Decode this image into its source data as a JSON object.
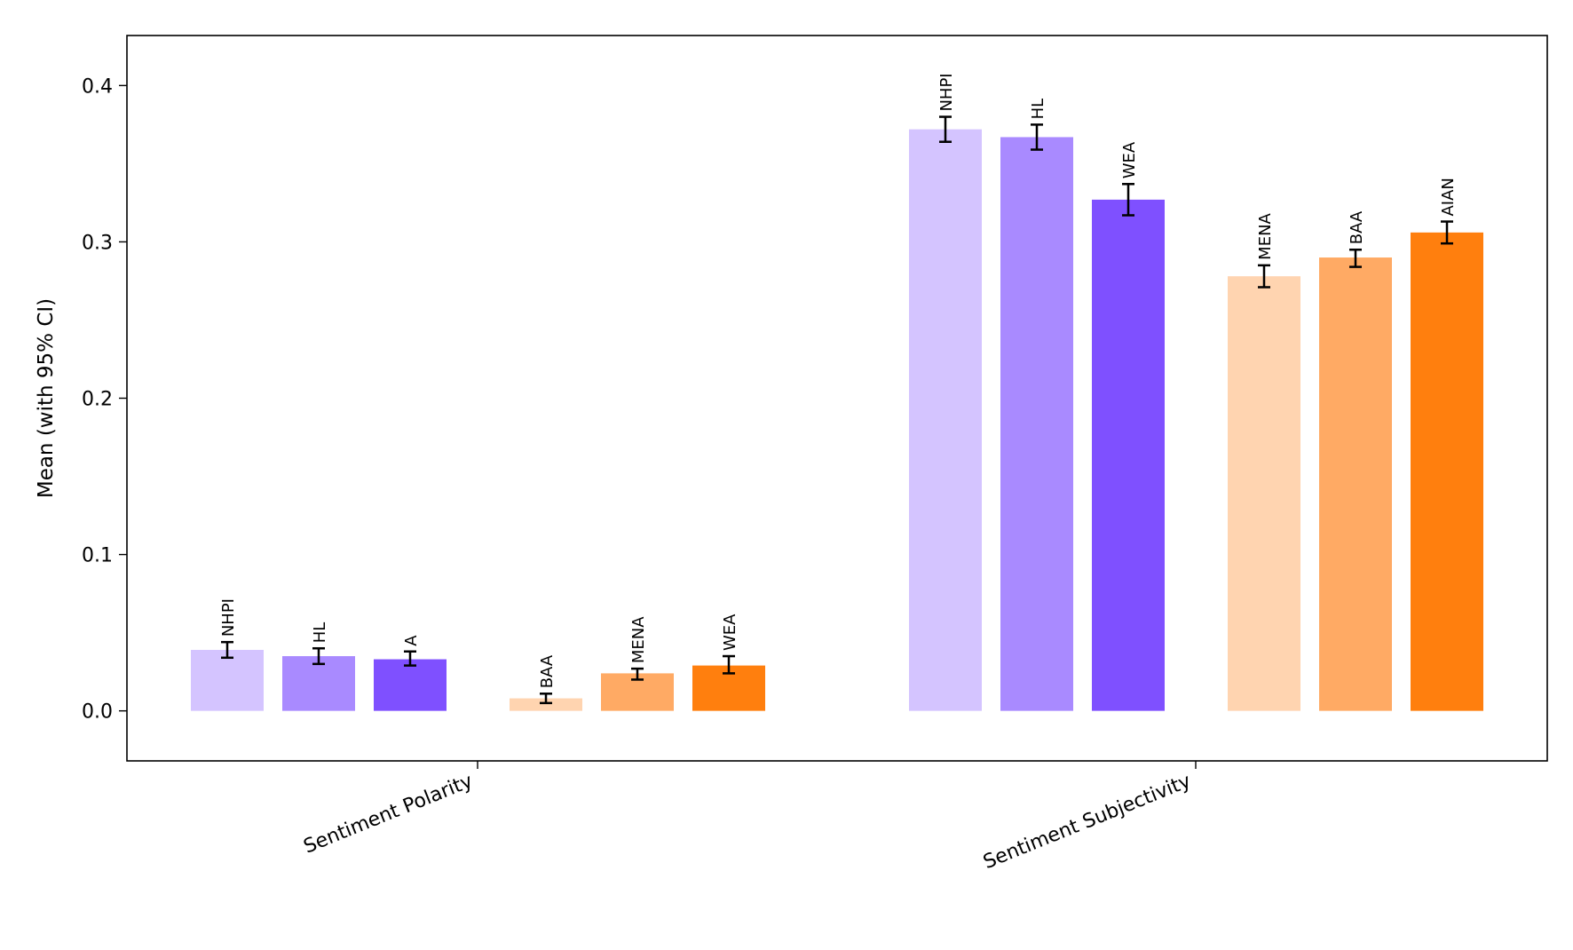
{
  "chart_data": {
    "type": "bar",
    "title": "",
    "xlabel": "",
    "ylabel": "Mean (with 95% CI)",
    "ylim": [
      -0.032,
      0.432
    ],
    "yticks": [
      0.0,
      0.1,
      0.2,
      0.3,
      0.4
    ],
    "ytick_labels": [
      "0.0",
      "0.1",
      "0.2",
      "0.3",
      "0.4"
    ],
    "categories": [
      "Sentiment Polarity",
      "Sentiment Subjectivity"
    ],
    "grid": false,
    "legend": "none",
    "groups": [
      {
        "category": "Sentiment Polarity",
        "bars": [
          {
            "label": "NHPI",
            "value": 0.039,
            "ci_low": 0.034,
            "ci_high": 0.044,
            "color": "#d4c4ff"
          },
          {
            "label": "HL",
            "value": 0.035,
            "ci_low": 0.03,
            "ci_high": 0.04,
            "color": "#a98aff"
          },
          {
            "label": "A",
            "value": 0.033,
            "ci_low": 0.029,
            "ci_high": 0.038,
            "color": "#7f50ff"
          },
          {
            "label": "BAA",
            "value": 0.008,
            "ci_low": 0.005,
            "ci_high": 0.011,
            "color": "#ffd4b0"
          },
          {
            "label": "MENA",
            "value": 0.024,
            "ci_low": 0.02,
            "ci_high": 0.027,
            "color": "#ffaa64"
          },
          {
            "label": "WEA",
            "value": 0.029,
            "ci_low": 0.024,
            "ci_high": 0.035,
            "color": "#ff7f0e"
          }
        ]
      },
      {
        "category": "Sentiment Subjectivity",
        "bars": [
          {
            "label": "NHPI",
            "value": 0.372,
            "ci_low": 0.364,
            "ci_high": 0.38,
            "color": "#d4c4ff"
          },
          {
            "label": "HL",
            "value": 0.367,
            "ci_low": 0.359,
            "ci_high": 0.375,
            "color": "#a98aff"
          },
          {
            "label": "WEA",
            "value": 0.327,
            "ci_low": 0.317,
            "ci_high": 0.337,
            "color": "#7f50ff"
          },
          {
            "label": "MENA",
            "value": 0.278,
            "ci_low": 0.271,
            "ci_high": 0.285,
            "color": "#ffd4b0"
          },
          {
            "label": "BAA",
            "value": 0.29,
            "ci_low": 0.284,
            "ci_high": 0.295,
            "color": "#ffaa64"
          },
          {
            "label": "AIAN",
            "value": 0.306,
            "ci_low": 0.299,
            "ci_high": 0.313,
            "color": "#ff7f0e"
          }
        ]
      }
    ]
  }
}
